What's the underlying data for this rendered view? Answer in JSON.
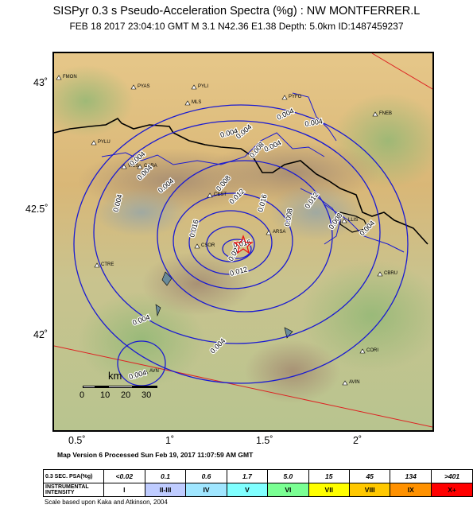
{
  "header": {
    "title": "SISPyr 0.3 s Pseudo-Acceleration Spectra (%g) : NW MONTFERRER.L",
    "subtitle": "FEB 18 2017 23:04:10  GMT   M 3.1    N42.36 E1.38   Depth: 5.0km   ID:1487459237"
  },
  "axes": {
    "lat_labels": [
      "43˚",
      "42.5˚",
      "42˚"
    ],
    "lon_labels": [
      "0.5˚",
      "1˚",
      "1.5˚",
      "2˚"
    ]
  },
  "cities": [
    "FMON",
    "PYAS",
    "PYLI",
    "MLS",
    "PYFO",
    "FNEB",
    "PYLU",
    "VIES",
    "CARA",
    "CEST",
    "ARSA",
    "LLIS",
    "CTRE",
    "CSOR",
    "CBRU",
    "AVN",
    "CORI",
    "AVIN"
  ],
  "contours": {
    "unit": "%g",
    "labels": [
      "0.004",
      "0.004",
      "0.004",
      "0.004",
      "0.004",
      "0.004",
      "0.004",
      "0.004",
      "0.004",
      "0.004",
      "0.004",
      "0.004",
      "0.004",
      "0.008",
      "0.008",
      "0.008",
      "0.008",
      "0.012",
      "0.012",
      "0.012",
      "0.016",
      "0.016",
      "0.016",
      "0.02"
    ]
  },
  "scalebar": {
    "label": "km",
    "ticks": [
      "0",
      "10",
      "20",
      "30"
    ]
  },
  "version_text": "Map Version 6 Processed Sun Feb 19, 2017 11:07:59 AM GMT",
  "legend": {
    "psa_header": "0.3 SEC. PSA(%g)",
    "psa_values": [
      "<0.02",
      "0.1",
      "0.6",
      "1.7",
      "5.0",
      "15",
      "45",
      "134",
      ">401"
    ],
    "intensity_header": "INSTRUMENTAL INTENSITY",
    "intensities": [
      "I",
      "II-III",
      "IV",
      "V",
      "VI",
      "VII",
      "VIII",
      "IX",
      "X+"
    ],
    "colors": [
      "#ffffff",
      "#bfccff",
      "#a0e6ff",
      "#80ffff",
      "#7aff93",
      "#ffff00",
      "#ffc800",
      "#ff9100",
      "#ff0000",
      "#c80000"
    ]
  },
  "scale_note": "Scale based upon Kaka and Atkinson, 2004"
}
